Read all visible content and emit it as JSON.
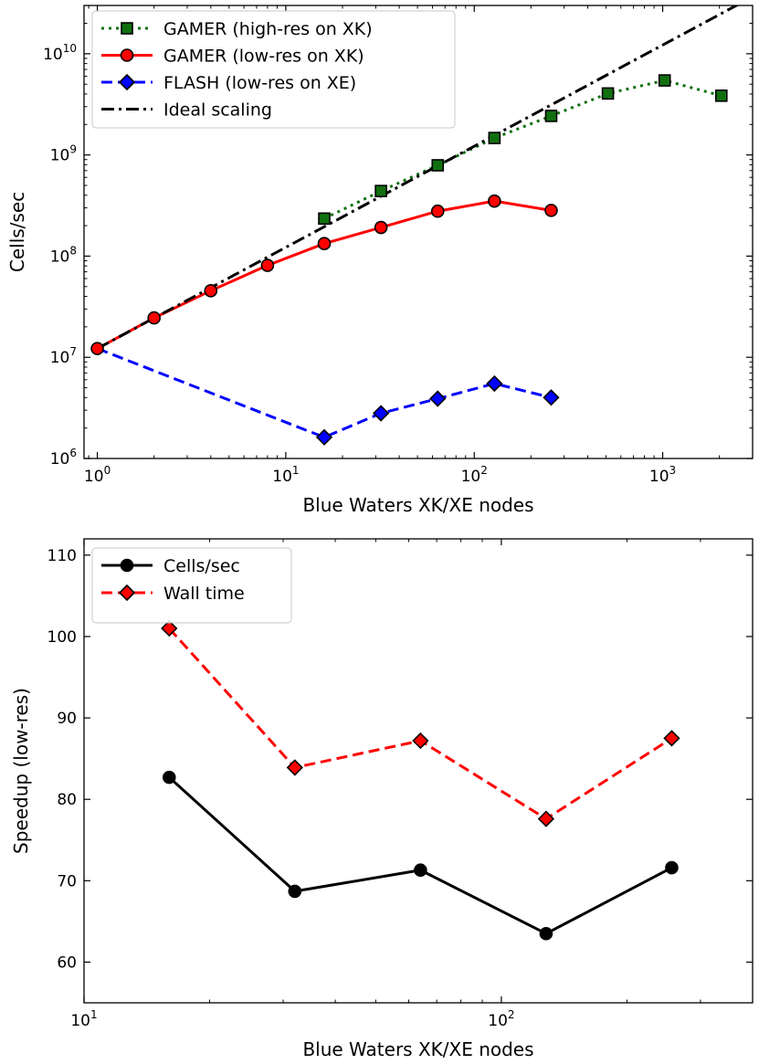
{
  "chart_data": [
    {
      "type": "line",
      "xscale": "log",
      "yscale": "log",
      "xlabel": "Blue Waters XK/XE nodes",
      "ylabel": "Cells/sec",
      "xlim": [
        0.85,
        3000
      ],
      "ylim": [
        1000000,
        30000000000
      ],
      "x_ticks": [
        1,
        10,
        100,
        1000
      ],
      "x_tick_labels": [
        {
          "base": "10",
          "exp": "0"
        },
        {
          "base": "10",
          "exp": "1"
        },
        {
          "base": "10",
          "exp": "2"
        },
        {
          "base": "10",
          "exp": "3"
        }
      ],
      "y_ticks": [
        1000000,
        10000000,
        100000000,
        1000000000,
        10000000000
      ],
      "y_tick_labels": [
        {
          "base": "10",
          "exp": "6"
        },
        {
          "base": "10",
          "exp": "7"
        },
        {
          "base": "10",
          "exp": "8"
        },
        {
          "base": "10",
          "exp": "9"
        },
        {
          "base": "10",
          "exp": "10"
        }
      ],
      "legend_position": "top-left",
      "series": [
        {
          "name": "GAMER (high-res on XK)",
          "color": "#107010",
          "line_style": "dotted",
          "marker": "square",
          "x": [
            16,
            32,
            64,
            128,
            256,
            512,
            1024,
            2048
          ],
          "y": [
            235000000,
            440000000,
            790000000,
            1470000000,
            2430000000,
            4050000000,
            5450000000,
            3850000000
          ]
        },
        {
          "name": "GAMER (low-res on XK)",
          "color": "#ff0000",
          "line_style": "solid",
          "marker": "circle",
          "x": [
            1,
            2,
            4,
            8,
            16,
            32,
            64,
            128,
            256
          ],
          "y": [
            12200000,
            24500000,
            45500000,
            81000000,
            133000000,
            192000000,
            278000000,
            350000000,
            283000000
          ]
        },
        {
          "name": "FLASH (low-res on XE)",
          "color": "#0000ff",
          "line_style": "dashed",
          "marker": "diamond",
          "x": [
            1,
            16,
            32,
            64,
            128,
            256
          ],
          "y": [
            12200000,
            1620000,
            2800000,
            3900000,
            5500000,
            4000000
          ],
          "note": "x=1 point is a dashed segment overlapping the red line start"
        },
        {
          "name": "Ideal scaling",
          "color": "#000000",
          "line_style": "dashdot",
          "marker": "none",
          "x": [
            1,
            3000
          ],
          "y": [
            12200000,
            36600000000
          ]
        }
      ]
    },
    {
      "type": "line",
      "xscale": "log",
      "yscale": "linear",
      "xlabel": "Blue Waters XK/XE nodes",
      "ylabel": "Speedup (low-res)",
      "xlim": [
        10,
        400
      ],
      "ylim": [
        55,
        112
      ],
      "x_ticks": [
        10,
        100
      ],
      "x_tick_labels": [
        {
          "base": "10",
          "exp": "1"
        },
        {
          "base": "10",
          "exp": "2"
        }
      ],
      "y_ticks": [
        60,
        70,
        80,
        90,
        100,
        110
      ],
      "y_tick_labels": [
        "60",
        "70",
        "80",
        "90",
        "100",
        "110"
      ],
      "legend_position": "top-left",
      "series": [
        {
          "name": "Cells/sec",
          "color": "#000000",
          "line_style": "solid",
          "marker": "circle",
          "x": [
            16,
            32,
            64,
            128,
            256
          ],
          "y": [
            82.7,
            68.7,
            71.3,
            63.5,
            71.6
          ]
        },
        {
          "name": "Wall time",
          "color": "#ff0000",
          "line_style": "dashed",
          "marker": "diamond",
          "x": [
            16,
            32,
            64,
            128,
            256
          ],
          "y": [
            101.0,
            83.9,
            87.2,
            77.6,
            87.5
          ]
        }
      ]
    }
  ]
}
